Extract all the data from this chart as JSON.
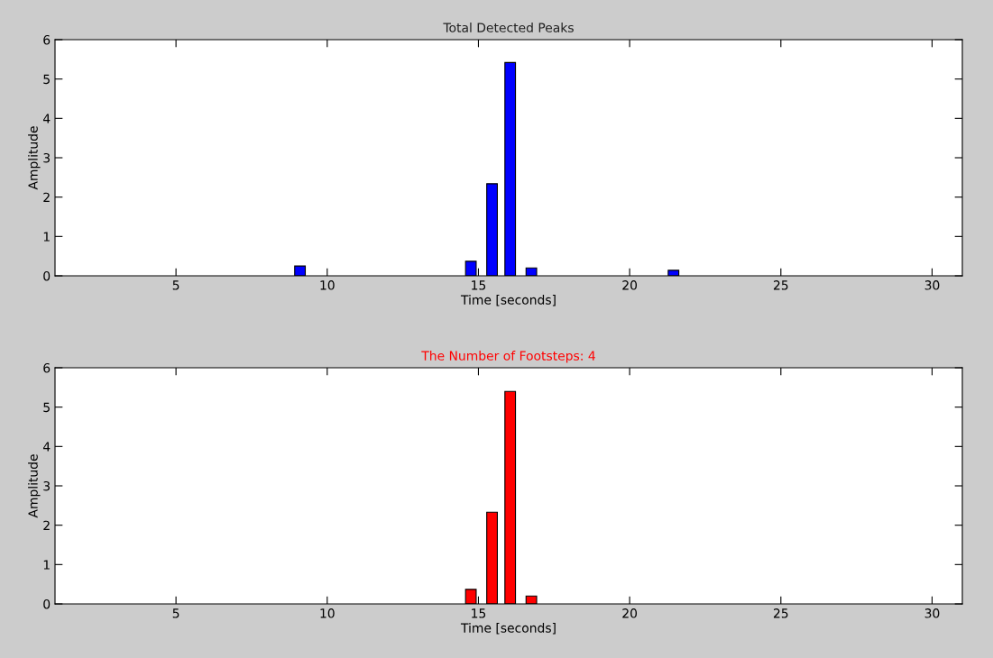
{
  "chart_data": [
    {
      "type": "bar",
      "title": "Total Detected Peaks",
      "xlabel": "Time [seconds]",
      "ylabel": "Amplitude",
      "x": [
        9.1,
        14.75,
        15.45,
        16.05,
        16.75,
        21.45
      ],
      "series": [
        {
          "color": "#0000ff",
          "values": [
            0.25,
            0.37,
            2.34,
            5.42,
            0.2,
            0.14
          ]
        }
      ],
      "xlim": [
        1,
        31
      ],
      "xticks": [
        5,
        10,
        15,
        20,
        25,
        30
      ],
      "ylim": [
        0,
        6
      ],
      "yticks": [
        0,
        1,
        2,
        3,
        4,
        5,
        6
      ],
      "grid": false,
      "legend": false
    },
    {
      "type": "bar",
      "title": "The Number of Footsteps: 4",
      "xlabel": "Time [seconds]",
      "ylabel": "Amplitude",
      "x": [
        14.75,
        15.45,
        16.05,
        16.75
      ],
      "series": [
        {
          "color": "#ff0000",
          "values": [
            0.37,
            2.33,
            5.4,
            0.2
          ]
        }
      ],
      "xlim": [
        1,
        31
      ],
      "xticks": [
        5,
        10,
        15,
        20,
        25,
        30
      ],
      "ylim": [
        0,
        6
      ],
      "yticks": [
        0,
        1,
        2,
        3,
        4,
        5,
        6
      ],
      "grid": false,
      "legend": false
    }
  ]
}
